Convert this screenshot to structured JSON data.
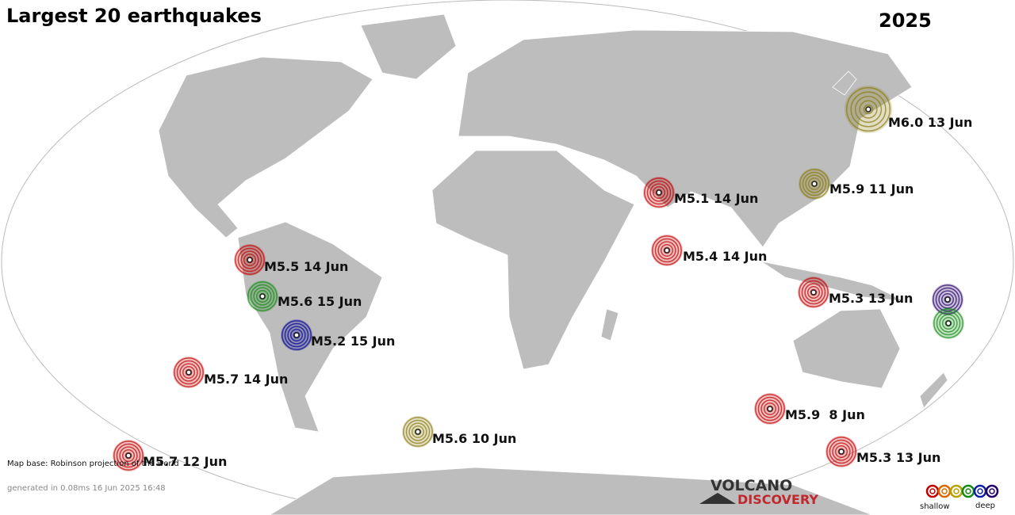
{
  "header": {
    "title": "Largest 20 earthquakes",
    "year": "2025"
  },
  "quakes": [
    {
      "label": "M6.0 13 Jun",
      "color": "#8a7a10"
    },
    {
      "label": "M5.9 11 Jun",
      "color": "#8a7a10"
    },
    {
      "label": "M5.1 14 Jun",
      "color": "#c00000"
    },
    {
      "label": "M5.4 14 Jun",
      "color": "#c00000"
    },
    {
      "label": "M5.5 14 Jun",
      "color": "#c00000"
    },
    {
      "label": "M5.6 15 Jun",
      "color": "#128a12"
    },
    {
      "label": "M5.2 15 Jun",
      "color": "#000099"
    },
    {
      "label": "M5.7 14 Jun",
      "color": "#c00000"
    },
    {
      "label": "M5.3 13 Jun",
      "color": "#c00000"
    },
    {
      "label": "M5.9  8 Jun",
      "color": "#c00000"
    },
    {
      "label": "M5.6 10 Jun",
      "color": "#8a7a10"
    },
    {
      "label": "M5.3 13 Jun",
      "color": "#c00000"
    },
    {
      "label": "M5.7 12 Jun",
      "color": "#c00000"
    },
    {
      "color": "#220066"
    },
    {
      "color": "#128a12"
    }
  ],
  "footer": {
    "map_base": "Map base: Robinson projection of the world",
    "generated": "generated in 0.08ms 16 Jun 2025 16:48"
  },
  "logo": {
    "line1": "VOLCANO",
    "line2": "DISCOVERY"
  },
  "legend": {
    "shallow": "shallow",
    "deep": "deep"
  }
}
